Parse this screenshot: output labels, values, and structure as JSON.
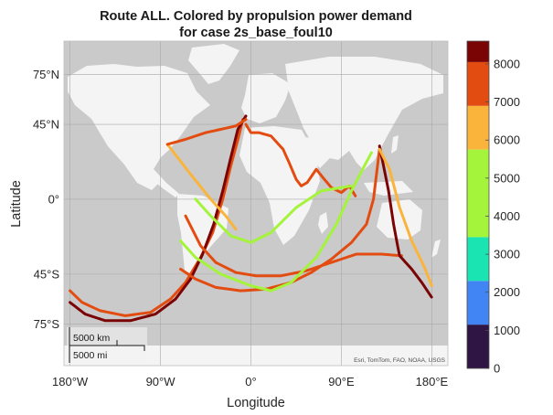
{
  "title_line1": "Route ALL. Colored by propulsion power demand",
  "title_line2": "for case 2s_base_foul10",
  "xlabel": "Longitude",
  "ylabel": "Latitude",
  "attribution": "Esri, TomTom, FAO, NOAA, USGS",
  "scale_bar": {
    "km_label": "5000 km",
    "mi_label": "5000 mi"
  },
  "map_extent": {
    "lon": [
      -186,
      196
    ],
    "lat": [
      -100,
      95
    ]
  },
  "lat_ticks": [
    {
      "value": 75,
      "label": "75°N"
    },
    {
      "value": 45,
      "label": "45°N"
    },
    {
      "value": 0,
      "label": "0°"
    },
    {
      "value": -45,
      "label": "45°S"
    },
    {
      "value": -75,
      "label": "75°S"
    }
  ],
  "lon_ticks": [
    {
      "value": -180,
      "label": "180°W"
    },
    {
      "value": -90,
      "label": "90°W"
    },
    {
      "value": 0,
      "label": "0°"
    },
    {
      "value": 90,
      "label": "90°E"
    },
    {
      "value": 180,
      "label": "180°E"
    }
  ],
  "colorbar": {
    "min": 0,
    "max": 8600,
    "ticks": [
      0,
      1000,
      2000,
      3000,
      4000,
      5000,
      6000,
      7000,
      8000
    ],
    "bins": [
      {
        "from": 0,
        "to": 1150,
        "color": "#2e1543"
      },
      {
        "from": 1150,
        "to": 2300,
        "color": "#4185f4"
      },
      {
        "from": 2300,
        "to": 3450,
        "color": "#1be4b3"
      },
      {
        "from": 3450,
        "to": 4600,
        "color": "#a3f43a"
      },
      {
        "from": 4600,
        "to": 5750,
        "color": "#a3f43a"
      },
      {
        "from": 5750,
        "to": 6900,
        "color": "#fbb43b"
      },
      {
        "from": 6900,
        "to": 8050,
        "color": "#e34c10"
      },
      {
        "from": 8050,
        "to": 8600,
        "color": "#7a0403"
      }
    ]
  },
  "chart_data": {
    "type": "scatter",
    "title": "Route ALL. Colored by propulsion power demand for case 2s_base_foul10",
    "xlabel": "Longitude",
    "ylabel": "Latitude",
    "colorbar_label": "",
    "series": [
      {
        "name": "",
        "power": 7300,
        "points": [
          [
            -180,
            -55
          ],
          [
            -168,
            -62
          ],
          [
            -150,
            -67
          ],
          [
            -125,
            -70
          ],
          [
            -100,
            -68
          ],
          [
            -80,
            -60
          ],
          [
            -65,
            -50
          ],
          [
            -50,
            -35
          ],
          [
            -38,
            -20
          ],
          [
            -28,
            0
          ],
          [
            -20,
            20
          ],
          [
            -12,
            38
          ],
          [
            -8,
            48
          ]
        ]
      },
      {
        "name": "",
        "power": 8300,
        "points": [
          [
            -180,
            -62
          ],
          [
            -165,
            -69
          ],
          [
            -145,
            -73
          ],
          [
            -120,
            -73
          ],
          [
            -95,
            -69
          ],
          [
            -75,
            -60
          ],
          [
            -60,
            -48
          ],
          [
            -48,
            -33
          ],
          [
            -37,
            -15
          ],
          [
            -28,
            5
          ],
          [
            -20,
            25
          ],
          [
            -13,
            42
          ],
          [
            -5,
            50
          ]
        ]
      },
      {
        "name": "",
        "power": 7400,
        "points": [
          [
            -5,
            45
          ],
          [
            0,
            40
          ],
          [
            8,
            40
          ],
          [
            20,
            38
          ],
          [
            32,
            30
          ],
          [
            38,
            22
          ],
          [
            45,
            12
          ],
          [
            50,
            8
          ],
          [
            56,
            10
          ],
          [
            65,
            18
          ],
          [
            73,
            12
          ],
          [
            80,
            7
          ],
          [
            90,
            4
          ],
          [
            98,
            8
          ],
          [
            104,
            2
          ]
        ]
      },
      {
        "name": "",
        "power": 7400,
        "points": [
          [
            -65,
            -10
          ],
          [
            -50,
            -28
          ],
          [
            -35,
            -38
          ],
          [
            -15,
            -44
          ],
          [
            5,
            -46
          ],
          [
            30,
            -46
          ],
          [
            55,
            -43
          ],
          [
            80,
            -38
          ],
          [
            105,
            -33
          ],
          [
            130,
            -33
          ],
          [
            150,
            -34
          ]
        ]
      },
      {
        "name": "",
        "power": 7400,
        "points": [
          [
            -70,
            -42
          ],
          [
            -55,
            -48
          ],
          [
            -35,
            -53
          ],
          [
            -10,
            -55
          ],
          [
            15,
            -54
          ],
          [
            40,
            -50
          ],
          [
            60,
            -44
          ],
          [
            80,
            -36
          ],
          [
            100,
            -26
          ],
          [
            115,
            -15
          ],
          [
            122,
            0
          ],
          [
            126,
            20
          ],
          [
            128,
            30
          ]
        ]
      },
      {
        "name": "",
        "power": 8300,
        "points": [
          [
            128,
            32
          ],
          [
            132,
            20
          ],
          [
            137,
            5
          ],
          [
            142,
            -15
          ],
          [
            146,
            -28
          ],
          [
            148,
            -34
          ],
          [
            160,
            -42
          ],
          [
            170,
            -50
          ],
          [
            180,
            -59
          ]
        ]
      },
      {
        "name": "",
        "power": 6200,
        "points": [
          [
            128,
            30
          ],
          [
            138,
            18
          ],
          [
            148,
            -5
          ],
          [
            160,
            -25
          ],
          [
            172,
            -40
          ],
          [
            180,
            -52
          ]
        ]
      },
      {
        "name": "",
        "power": 4300,
        "points": [
          [
            -70,
            -25
          ],
          [
            -55,
            -35
          ],
          [
            -30,
            -45
          ],
          [
            0,
            -52
          ],
          [
            20,
            -55
          ],
          [
            40,
            -50
          ],
          [
            65,
            -35
          ],
          [
            85,
            -15
          ],
          [
            100,
            5
          ],
          [
            113,
            20
          ],
          [
            120,
            28
          ]
        ]
      },
      {
        "name": "",
        "power": 4300,
        "points": [
          [
            -55,
            0
          ],
          [
            -40,
            -10
          ],
          [
            -20,
            -22
          ],
          [
            0,
            -26
          ],
          [
            20,
            -20
          ],
          [
            45,
            -5
          ],
          [
            70,
            5
          ],
          [
            100,
            8
          ]
        ]
      },
      {
        "name": "",
        "power": 6200,
        "points": [
          [
            -83,
            33
          ],
          [
            -60,
            15
          ],
          [
            -40,
            0
          ],
          [
            -25,
            -10
          ],
          [
            -15,
            -18
          ]
        ]
      },
      {
        "name": "",
        "power": 7400,
        "points": [
          [
            -83,
            33
          ],
          [
            -65,
            36
          ],
          [
            -45,
            40
          ],
          [
            -30,
            42
          ],
          [
            -15,
            44
          ],
          [
            -5,
            48
          ]
        ]
      }
    ]
  }
}
